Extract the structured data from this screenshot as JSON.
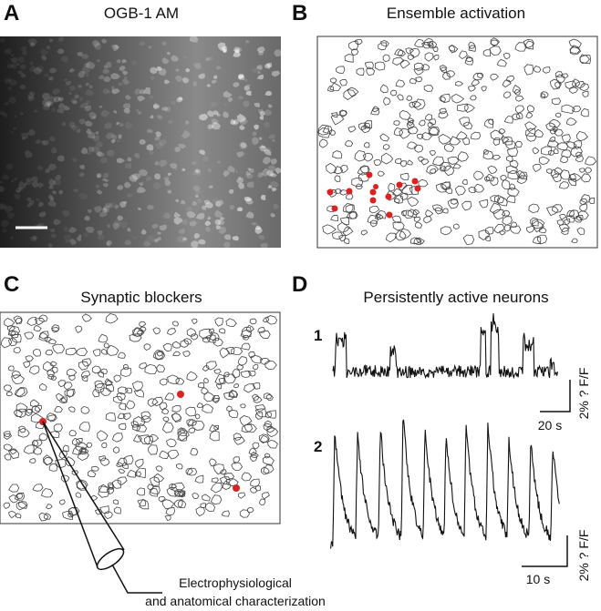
{
  "panels": [
    {
      "label": "A",
      "title": "OGB-1 AM"
    },
    {
      "label": "B",
      "title": "Ensemble activation"
    },
    {
      "label": "C",
      "title": "Synaptic blockers",
      "annotation": [
        "Electrophysiological",
        "and anatomical characterization"
      ]
    },
    {
      "label": "D",
      "title": "Persistently active neurons",
      "traces": [
        {
          "label": "1",
          "time_scale": "20 s",
          "amplitude_scale": "2% ? F/F"
        },
        {
          "label": "2",
          "time_scale": "10 s",
          "amplitude_scale": "2% ? F/F"
        }
      ]
    }
  ]
}
